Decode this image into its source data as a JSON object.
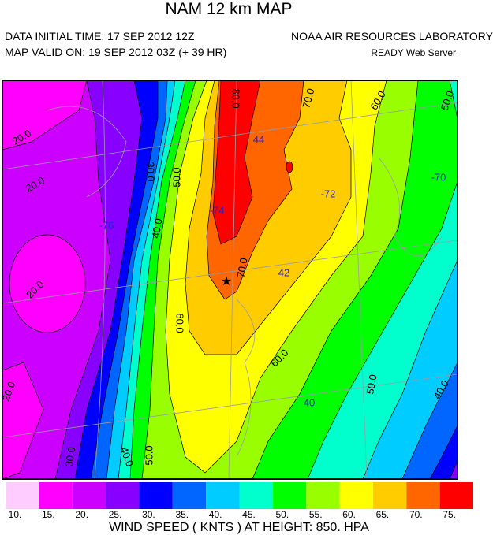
{
  "header": {
    "title": "NAM 12 km MAP",
    "initial_time": "DATA INITIAL TIME: 17 SEP 2012 12Z",
    "valid_time": "MAP VALID ON: 19 SEP 2012 03Z (+ 39 HR)",
    "organization": "NOAA AIR RESOURCES LABORATORY",
    "server": "READY Web Server"
  },
  "map": {
    "contour_labels": [
      "80.0",
      "70.0",
      "60.0",
      "50.0",
      "20.0",
      "20.0",
      "30.0",
      "50.0",
      "40.0",
      "20.0",
      "60.0",
      "70.0",
      "60.0",
      "50.0",
      "40.0",
      "20.0",
      "30.0",
      "40.0",
      "50.0"
    ],
    "grid_labels": [
      "44",
      "-74",
      "-76",
      "-72",
      "-70",
      "42",
      "40"
    ]
  },
  "colorbar": {
    "labels": [
      "10.",
      "15.",
      "20.",
      "25.",
      "30.",
      "35.",
      "40.",
      "45.",
      "50.",
      "55.",
      "60.",
      "65.",
      "70.",
      "75."
    ],
    "colors": [
      "#ffccff",
      "#ff00ff",
      "#cc00ff",
      "#8800ff",
      "#0000ff",
      "#0066ff",
      "#00ccff",
      "#00ffcc",
      "#00ff00",
      "#99ff00",
      "#ffff00",
      "#ffcc00",
      "#ff6600",
      "#ff0000"
    ]
  },
  "footer": "WIND SPEED ( KNTS ) AT HEIGHT: 850. HPA"
}
